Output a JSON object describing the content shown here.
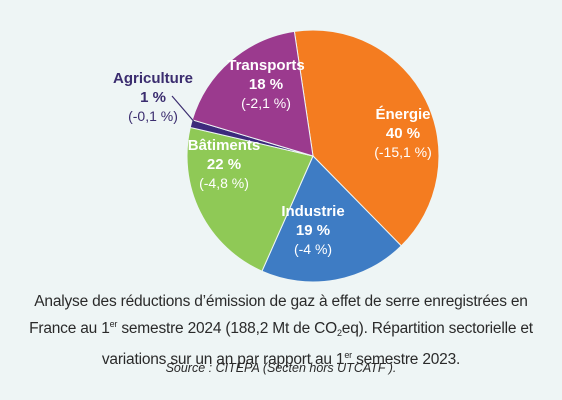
{
  "chart_data": {
    "type": "pie",
    "slices": [
      {
        "label": "Énergie",
        "percent": "40 %",
        "value": 40,
        "change": "(-15,1 %)",
        "color": "#f47c20",
        "text_color": "#ffffff",
        "change_color": "#ffffff"
      },
      {
        "label": "Industrie",
        "percent": "19 %",
        "value": 19,
        "change": "(-4 %)",
        "color": "#3e7cc4",
        "text_color": "#ffffff",
        "change_color": "#ffffff"
      },
      {
        "label": "Bâtiments",
        "percent": "22 %",
        "value": 22,
        "change": "(-4,8 %)",
        "color": "#8fc956",
        "text_color": "#ffffff",
        "change_color": "#ffffff"
      },
      {
        "label": "Agriculture",
        "percent": "1 %",
        "value": 1,
        "change": "(-0,1 %)",
        "color": "#3c2a7c",
        "text_color": "#3b2d6f",
        "change_color": "#3b2d6f"
      },
      {
        "label": "Transports",
        "percent": "18 %",
        "value": 18,
        "change": "(-2,1 %)",
        "color": "#9b3a8e",
        "text_color": "#ffffff",
        "change_color": "#ffffff"
      }
    ]
  },
  "caption": {
    "line1": "Analyse des réductions d’émission de gaz à effet de serre enregistrées en",
    "line2_a": "France au 1",
    "line2_sup": "er",
    "line2_b": " semestre 2024 (188,2 Mt de CO",
    "line2_sub": "2",
    "line2_c": "eq). Répartition sectorielle et",
    "line3_a": "variations sur un an par rapport  au 1",
    "line3_sup": "er",
    "line3_b": " semestre 2023.",
    "source": "Source : CITEPA (Secten hors UTCATF )."
  }
}
